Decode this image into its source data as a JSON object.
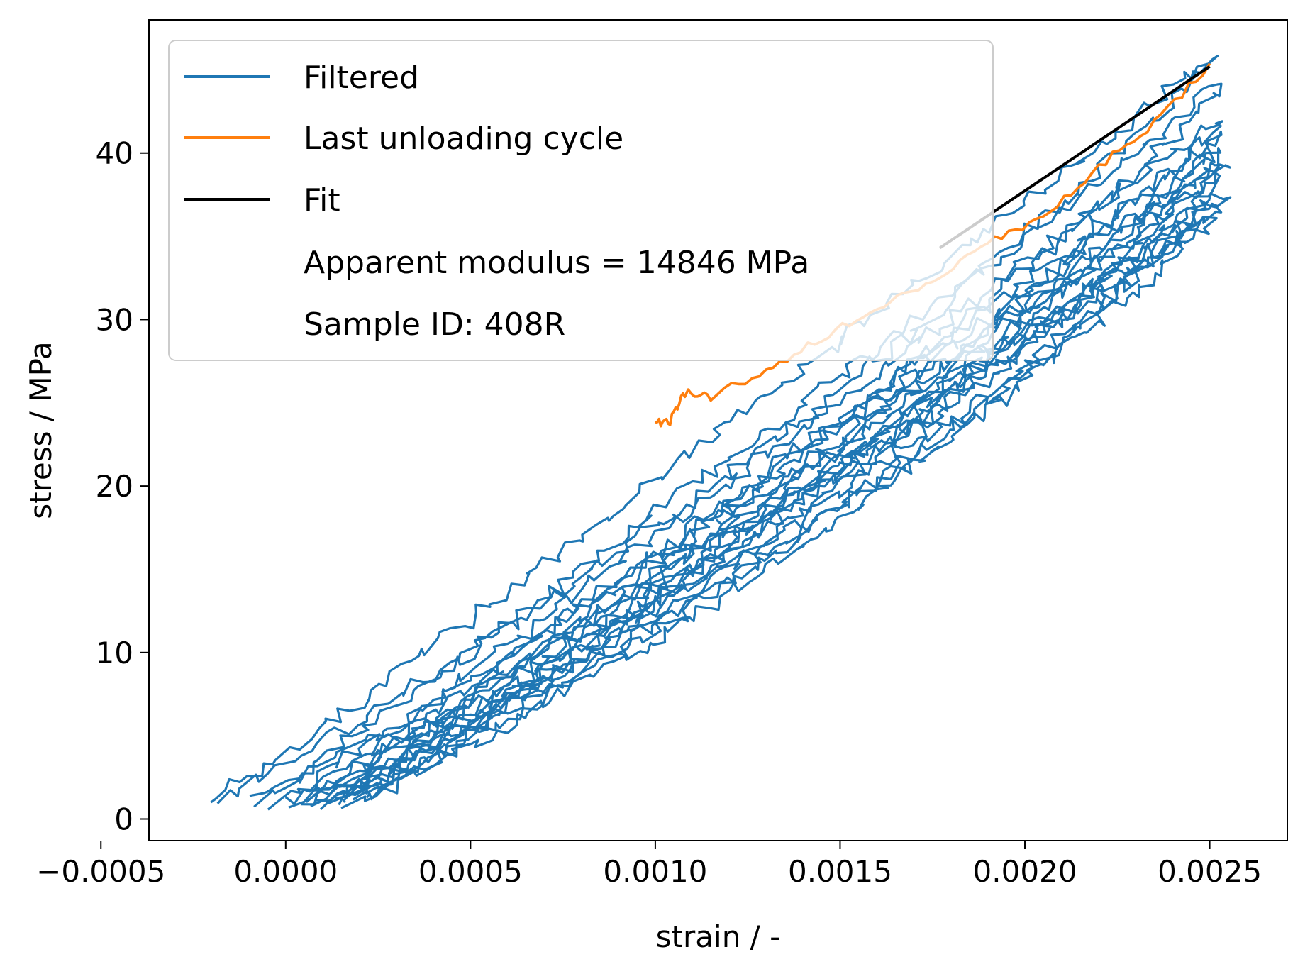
{
  "chart_data": {
    "type": "line",
    "xlabel": "strain / -",
    "ylabel": "stress / MPa",
    "xlim": [
      -0.00037,
      0.00271
    ],
    "ylim": [
      -1.3,
      48
    ],
    "x_ticks": [
      -0.0005,
      0.0,
      0.0005,
      0.001,
      0.0015,
      0.002,
      0.0025
    ],
    "x_tick_labels": [
      "−0.0005",
      "0.0000",
      "0.0005",
      "0.0010",
      "0.0015",
      "0.0020",
      "0.0025"
    ],
    "y_ticks": [
      0,
      10,
      20,
      30,
      40
    ],
    "y_tick_labels": [
      "0",
      "10",
      "20",
      "30",
      "40"
    ],
    "grid": false,
    "legend_position": "top-left",
    "series": [
      {
        "name": "Filtered",
        "color": "#1f77b4",
        "cycles": [
          {
            "x0": -0.00022,
            "x1": 0.0025,
            "ymax": 45.5
          },
          {
            "x0": -0.0001,
            "x1": 0.00253,
            "ymax": 44.0
          },
          {
            "x0": -3e-05,
            "x1": 0.00252,
            "ymax": 42.0
          },
          {
            "x0": 2e-05,
            "x1": 0.00253,
            "ymax": 41.0
          },
          {
            "x0": 5e-05,
            "x1": 0.00252,
            "ymax": 40.0
          },
          {
            "x0": 8e-05,
            "x1": 0.00253,
            "ymax": 39.5
          },
          {
            "x0": 0.0001,
            "x1": 0.00251,
            "ymax": 38.5
          },
          {
            "x0": 0.00013,
            "x1": 0.00252,
            "ymax": 37.5
          },
          {
            "x0": 0.00015,
            "x1": 0.00251,
            "ymax": 37.0
          },
          {
            "x0": 0.00018,
            "x1": 0.00249,
            "ymax": 36.0
          }
        ]
      },
      {
        "name": "Last unloading cycle",
        "color": "#ff7f0e",
        "x": [
          0.0025,
          0.00235,
          0.0022,
          0.00205,
          0.0019,
          0.00175,
          0.0016,
          0.00145,
          0.0013,
          0.00115,
          0.00108,
          0.00104,
          0.001
        ],
        "y": [
          45.3,
          41.8,
          39.2,
          36.2,
          34.6,
          32.4,
          30.6,
          28.9,
          27.0,
          25.3,
          25.6,
          23.9,
          23.8
        ]
      },
      {
        "name": "Fit",
        "color": "#000000",
        "x": [
          0.00177,
          0.0025
        ],
        "y": [
          34.3,
          45.2
        ]
      }
    ],
    "legend_extra": [
      "Apparent modulus = 14846 MPa",
      "Sample ID: 408R"
    ]
  }
}
